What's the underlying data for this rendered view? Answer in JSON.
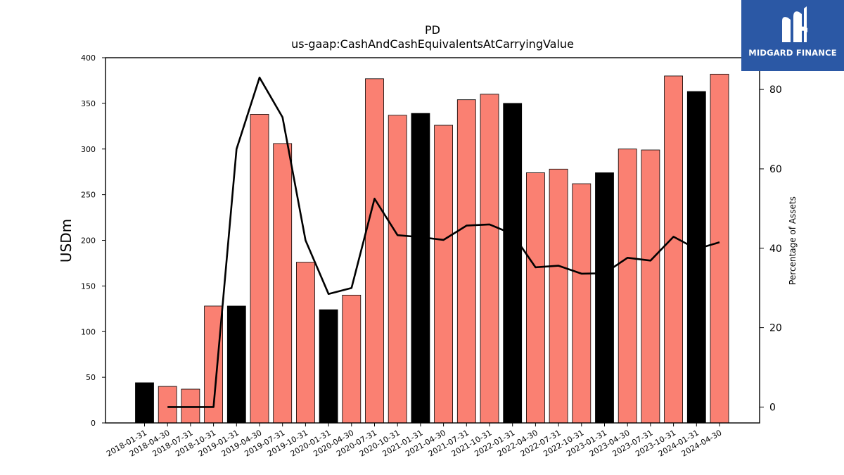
{
  "chart_data": {
    "type": "bar",
    "title": "PD",
    "subtitle": "us-gaap:CashAndCashEquivalentsAtCarryingValue",
    "ylabel": "USDm",
    "ylabel_right": "Percentage of Assets",
    "ylim": [
      0,
      400
    ],
    "ylim_right": [
      -4,
      88
    ],
    "yticks": [
      0,
      50,
      100,
      150,
      200,
      250,
      300,
      350,
      400
    ],
    "yticks_right": [
      0,
      20,
      40,
      60,
      80
    ],
    "categories": [
      "2018-01-31",
      "2018-04-30",
      "2018-07-31",
      "2018-10-31",
      "2019-01-31",
      "2019-04-30",
      "2019-07-31",
      "2019-10-31",
      "2020-01-31",
      "2020-04-30",
      "2020-07-31",
      "2020-10-31",
      "2021-01-31",
      "2021-04-30",
      "2021-07-31",
      "2021-10-31",
      "2022-01-31",
      "2022-04-30",
      "2022-07-31",
      "2022-10-31",
      "2023-01-31",
      "2023-04-30",
      "2023-07-31",
      "2023-10-31",
      "2024-01-31",
      "2024-04-30"
    ],
    "series": [
      {
        "type": "bar",
        "values": [
          44,
          40,
          37,
          128,
          128,
          338,
          306,
          176,
          124,
          140,
          377,
          337,
          339,
          326,
          354,
          360,
          350,
          274,
          278,
          262,
          274,
          300,
          299,
          380,
          363,
          382
        ],
        "colors": [
          "#000000",
          "#fa8072",
          "#fa8072",
          "#fa8072",
          "#000000",
          "#fa8072",
          "#fa8072",
          "#fa8072",
          "#000000",
          "#fa8072",
          "#fa8072",
          "#fa8072",
          "#000000",
          "#fa8072",
          "#fa8072",
          "#fa8072",
          "#000000",
          "#fa8072",
          "#fa8072",
          "#fa8072",
          "#000000",
          "#fa8072",
          "#fa8072",
          "#fa8072",
          "#000000",
          "#fa8072"
        ]
      },
      {
        "type": "line",
        "axis": "right",
        "color": "#000000",
        "values": [
          null,
          0,
          0,
          0,
          65,
          83,
          73,
          42,
          28.5,
          30,
          52.5,
          43.3,
          42.8,
          42.1,
          45.7,
          46,
          43.6,
          35.2,
          35.6,
          33.6,
          33.7,
          37.6,
          36.9,
          42.9,
          39.8,
          41.5
        ]
      }
    ],
    "grid": false,
    "legend": "none"
  },
  "logo": {
    "text": "MIDGARD FINANCE",
    "bg": "#2b58a5"
  }
}
